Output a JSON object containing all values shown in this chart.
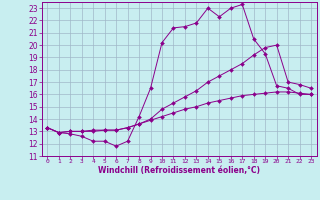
{
  "bg_color": "#c8eef0",
  "line_color": "#8b008b",
  "grid_color": "#a0b8c8",
  "xlabel": "Windchill (Refroidissement éolien,°C)",
  "xlabel_color": "#8b008b",
  "ylim": [
    11,
    23.5
  ],
  "xlim": [
    -0.5,
    23.5
  ],
  "yticks": [
    11,
    12,
    13,
    14,
    15,
    16,
    17,
    18,
    19,
    20,
    21,
    22,
    23
  ],
  "xticks": [
    0,
    1,
    2,
    3,
    4,
    5,
    6,
    7,
    8,
    9,
    10,
    11,
    12,
    13,
    14,
    15,
    16,
    17,
    18,
    19,
    20,
    21,
    22,
    23
  ],
  "series": [
    {
      "x": [
        0,
        1,
        2,
        3,
        4,
        5,
        6,
        7,
        8,
        9,
        10,
        11,
        12,
        13,
        14,
        15,
        16,
        17,
        18,
        19,
        20,
        21,
        22,
        23
      ],
      "y": [
        13.3,
        12.9,
        12.8,
        12.6,
        12.2,
        12.2,
        11.8,
        12.2,
        14.2,
        16.5,
        20.2,
        21.4,
        21.5,
        21.8,
        23.0,
        22.3,
        23.0,
        23.3,
        20.5,
        19.3,
        16.7,
        16.5,
        16.0,
        16.0
      ]
    },
    {
      "x": [
        0,
        1,
        2,
        3,
        4,
        5,
        6,
        7,
        8,
        9,
        10,
        11,
        12,
        13,
        14,
        15,
        16,
        17,
        18,
        19,
        20,
        21,
        22,
        23
      ],
      "y": [
        13.3,
        12.9,
        13.0,
        13.0,
        13.1,
        13.1,
        13.1,
        13.3,
        13.6,
        13.9,
        14.2,
        14.5,
        14.8,
        15.0,
        15.3,
        15.5,
        15.7,
        15.9,
        16.0,
        16.1,
        16.2,
        16.2,
        16.1,
        16.0
      ]
    },
    {
      "x": [
        0,
        1,
        2,
        3,
        4,
        5,
        6,
        7,
        8,
        9,
        10,
        11,
        12,
        13,
        14,
        15,
        16,
        17,
        18,
        19,
        20,
        21,
        22,
        23
      ],
      "y": [
        13.3,
        12.9,
        13.0,
        13.0,
        13.0,
        13.1,
        13.1,
        13.3,
        13.6,
        14.0,
        14.8,
        15.3,
        15.8,
        16.3,
        17.0,
        17.5,
        18.0,
        18.5,
        19.2,
        19.8,
        20.0,
        17.0,
        16.8,
        16.5
      ]
    }
  ]
}
